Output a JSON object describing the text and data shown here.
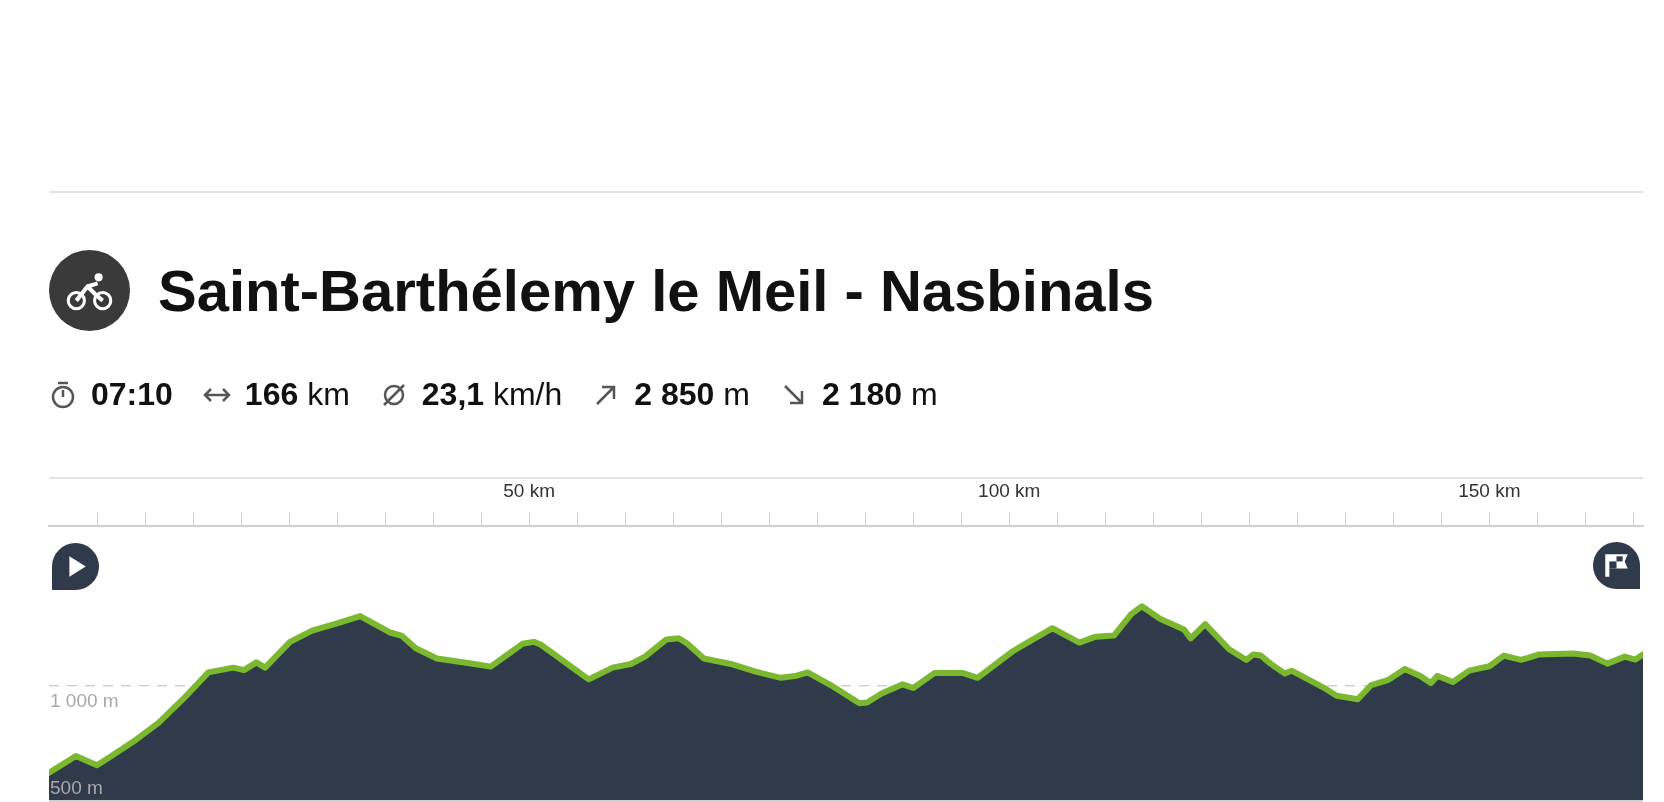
{
  "chart_data": {
    "type": "area",
    "title": "Saint-Barthélemy le Meil - Nasbinals",
    "annotations": [
      "07:10",
      "166 km",
      "23,1 km/h",
      "2 850 m",
      "2 180 m"
    ],
    "x": [
      0,
      2.8,
      5.0,
      6.5,
      9.1,
      11.4,
      14.0,
      16.6,
      19.2,
      20.3,
      21.6,
      22.5,
      25.1,
      27.4,
      30.0,
      32.4,
      35.6,
      36.7,
      38.2,
      40.4,
      43.8,
      46.0,
      49.3,
      50.5,
      51.2,
      56.2,
      58.7,
      60.6,
      62.1,
      64.3,
      65.6,
      66.5,
      68.2,
      71.0,
      73.6,
      76.2,
      77.7,
      79.0,
      81.4,
      84.4,
      85.2,
      86.7,
      88.9,
      90.0,
      92.2,
      95.2,
      96.7,
      100.4,
      104.5,
      107.3,
      109.0,
      110.9,
      112.7,
      113.8,
      115.7,
      118.2,
      118.9,
      120.4,
      122.9,
      124.7,
      125.4,
      126.2,
      127.2,
      128.7,
      129.4,
      132.6,
      134.1,
      136.3,
      137.7,
      139.5,
      141.2,
      142.8,
      143.9,
      144.6,
      146.2,
      147.9,
      150.0,
      151.5,
      153.3,
      155.1,
      158.7,
      160.5,
      162.3,
      164.1,
      165.2,
      166
    ],
    "values": [
      502,
      597,
      545,
      597,
      692,
      786,
      924,
      1074,
      1101,
      1087,
      1131,
      1101,
      1248,
      1312,
      1353,
      1395,
      1300,
      1284,
      1212,
      1153,
      1126,
      1107,
      1237,
      1248,
      1233,
      1034,
      1101,
      1122,
      1165,
      1262,
      1269,
      1237,
      1153,
      1122,
      1078,
      1043,
      1053,
      1074,
      1002,
      898,
      902,
      954,
      1006,
      985,
      1070,
      1070,
      1043,
      1196,
      1326,
      1244,
      1278,
      1284,
      1406,
      1451,
      1380,
      1319,
      1268,
      1349,
      1206,
      1145,
      1176,
      1170,
      1124,
      1068,
      1084,
      992,
      941,
      921,
      1002,
      1032,
      1094,
      1054,
      1013,
      1054,
      1019,
      1084,
      1109,
      1170,
      1145,
      1176,
      1182,
      1170,
      1124,
      1164,
      1147,
      1176
    ],
    "color": "#7cb82f",
    "xlim": [
      0,
      166
    ],
    "xticks": [
      {
        "value": 5,
        "label": null
      },
      {
        "value": 10,
        "label": null
      },
      {
        "value": 15,
        "label": null
      },
      {
        "value": 20,
        "label": null
      },
      {
        "value": 25,
        "label": null
      },
      {
        "value": 30,
        "label": null
      },
      {
        "value": 35,
        "label": null
      },
      {
        "value": 40,
        "label": null
      },
      {
        "value": 45,
        "label": null
      },
      {
        "value": 50,
        "label": "50 km"
      },
      {
        "value": 55,
        "label": null
      },
      {
        "value": 60,
        "label": null
      },
      {
        "value": 65,
        "label": null
      },
      {
        "value": 70,
        "label": null
      },
      {
        "value": 75,
        "label": null
      },
      {
        "value": 80,
        "label": null
      },
      {
        "value": 85,
        "label": null
      },
      {
        "value": 90,
        "label": null
      },
      {
        "value": 95,
        "label": null
      },
      {
        "value": 100,
        "label": "100 km"
      },
      {
        "value": 105,
        "label": null
      },
      {
        "value": 110,
        "label": null
      },
      {
        "value": 115,
        "label": null
      },
      {
        "value": 120,
        "label": null
      },
      {
        "value": 125,
        "label": null
      },
      {
        "value": 130,
        "label": null
      },
      {
        "value": 135,
        "label": null
      },
      {
        "value": 140,
        "label": null
      },
      {
        "value": 145,
        "label": null
      },
      {
        "value": 150,
        "label": "150 km"
      },
      {
        "value": 155,
        "label": null
      },
      {
        "value": 160,
        "label": null
      },
      {
        "value": 165,
        "label": null
      }
    ],
    "ylim": [
      335,
      1910
    ],
    "yticks": [
      {
        "value": 500,
        "label": "500 m"
      },
      {
        "value": 1000,
        "label": "1 000 m"
      }
    ],
    "grid": "y",
    "marker": "none"
  }
}
